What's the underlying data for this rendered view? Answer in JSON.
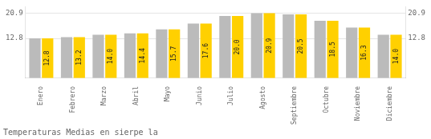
{
  "chart_data": {
    "type": "bar",
    "title": "Temperaturas Medias en sierpe la",
    "categories": [
      "Enero",
      "Febrero",
      "Marzo",
      "Abril",
      "Mayo",
      "Junio",
      "Julio",
      "Agosto",
      "Septiembre",
      "Octubre",
      "Noviembre",
      "Diciembre"
    ],
    "series": [
      {
        "color": "#BBBBBB",
        "values": [
          12.8,
          13.2,
          14.0,
          14.4,
          15.7,
          17.6,
          20.0,
          20.9,
          20.5,
          18.5,
          16.3,
          14.0
        ]
      },
      {
        "color": "#FFD000",
        "values": [
          12.8,
          13.2,
          14.0,
          14.4,
          15.7,
          17.6,
          20.0,
          20.9,
          20.5,
          18.5,
          16.3,
          14.0
        ],
        "data_labels": true,
        "value_labels": [
          "12.8",
          "13.2",
          "14.0",
          "14.4",
          "15.7",
          "17.6",
          "20.0",
          "20.9",
          "20.5",
          "18.5",
          "16.3",
          "14.0"
        ]
      }
    ],
    "ylim": [
      0.0,
      23.0
    ],
    "yticks": [
      12.8,
      20.9
    ],
    "y2lim": [
      0.0,
      23.0
    ],
    "y2ticks": [
      12.8,
      20.9
    ],
    "grid": true
  }
}
